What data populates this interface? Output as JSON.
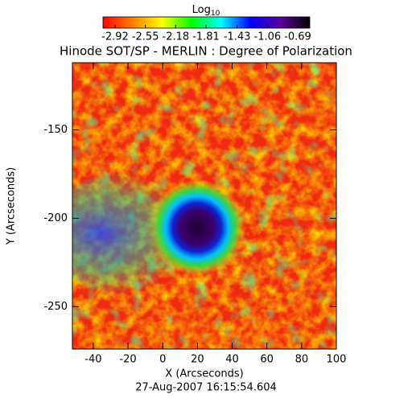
{
  "chart_data": {
    "type": "image",
    "title": "Hinode SOT/SP - MERLIN : Degree of Polarization",
    "x_label": "X (Arcseconds)",
    "y_label": "Y (Arcseconds)",
    "footer": "27-Aug-2007 16:15:54.604",
    "xlim": [
      -52,
      100
    ],
    "xticks": [
      -40,
      -20,
      0,
      20,
      40,
      60,
      80,
      100
    ],
    "ylim": [
      -274,
      -112
    ],
    "yticks": [
      -150,
      -200,
      -250
    ],
    "colorbar": {
      "label": "Log",
      "label_subscript": "10",
      "lim": [
        -2.92,
        -0.69
      ],
      "ticks": [
        -2.92,
        -2.55,
        -2.18,
        -1.81,
        -1.43,
        -1.06,
        -0.69
      ],
      "colors": [
        "#ff0000",
        "#ff7f00",
        "#ffff00",
        "#00ff00",
        "#00ffff",
        "#0000ff",
        "#5a00a0",
        "#000000"
      ]
    }
  }
}
